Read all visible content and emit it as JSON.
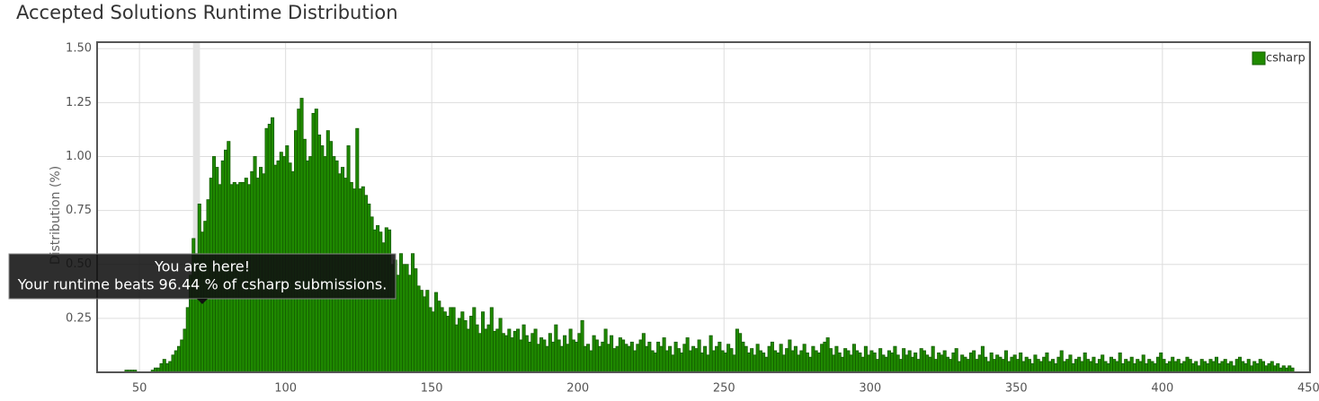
{
  "chart_data": {
    "type": "histogram",
    "title": "Accepted Solutions Runtime Distribution",
    "y_label": "Distribution (%)",
    "bins": [
      45,
      46,
      47,
      48,
      49,
      50,
      51,
      52,
      53,
      54,
      55,
      56,
      57,
      58,
      59,
      60,
      61,
      62,
      63,
      64,
      65,
      66,
      67,
      68,
      69,
      70,
      71,
      72,
      73,
      74,
      75,
      76,
      77,
      78,
      79,
      80,
      81,
      82,
      83,
      84,
      85,
      86,
      87,
      88,
      89,
      90,
      91,
      92,
      93,
      94,
      95,
      96,
      97,
      98,
      99,
      100,
      101,
      102,
      103,
      104,
      105,
      106,
      107,
      108,
      109,
      110,
      111,
      112,
      113,
      114,
      115,
      116,
      117,
      118,
      119,
      120,
      121,
      122,
      123,
      124,
      125,
      126,
      127,
      128,
      129,
      130,
      131,
      132,
      133,
      134,
      135,
      136,
      137,
      138,
      139,
      140,
      141,
      142,
      143,
      144,
      145,
      146,
      147,
      148,
      149,
      150,
      151,
      152,
      153,
      154,
      155,
      156,
      157,
      158,
      159,
      160,
      161,
      162,
      163,
      164,
      165,
      166,
      167,
      168,
      169,
      170,
      171,
      172,
      173,
      174,
      175,
      176,
      177,
      178,
      179,
      180,
      181,
      182,
      183,
      184,
      185,
      186,
      187,
      188,
      189,
      190,
      191,
      192,
      193,
      194,
      195,
      196,
      197,
      198,
      199,
      200,
      201,
      202,
      203,
      204,
      205,
      206,
      207,
      208,
      209,
      210,
      211,
      212,
      213,
      214,
      215,
      216,
      217,
      218,
      219,
      220,
      221,
      222,
      223,
      224,
      225,
      226,
      227,
      228,
      229,
      230,
      231,
      232,
      233,
      234,
      235,
      236,
      237,
      238,
      239,
      240,
      241,
      242,
      243,
      244,
      245,
      246,
      247,
      248,
      249,
      250,
      251,
      252,
      253,
      254,
      255,
      256,
      257,
      258,
      259,
      260,
      261,
      262,
      263,
      264,
      265,
      266,
      267,
      268,
      269,
      270,
      271,
      272,
      273,
      274,
      275,
      276,
      277,
      278,
      279,
      280,
      281,
      282,
      283,
      284,
      285,
      286,
      287,
      288,
      289,
      290,
      291,
      292,
      293,
      294,
      295,
      296,
      297,
      298,
      299,
      300,
      301,
      302,
      303,
      304,
      305,
      306,
      307,
      308,
      309,
      310,
      311,
      312,
      313,
      314,
      315,
      316,
      317,
      318,
      319,
      320,
      321,
      322,
      323,
      324,
      325,
      326,
      327,
      328,
      329,
      330,
      331,
      332,
      333,
      334,
      335,
      336,
      337,
      338,
      339,
      340,
      341,
      342,
      343,
      344,
      345,
      346,
      347,
      348,
      349,
      350,
      351,
      352,
      353,
      354,
      355,
      356,
      357,
      358,
      359,
      360,
      361,
      362,
      363,
      364,
      365,
      366,
      367,
      368,
      369,
      370,
      371,
      372,
      373,
      374,
      375,
      376,
      377,
      378,
      379,
      380,
      381,
      382,
      383,
      384,
      385,
      386,
      387,
      388,
      389,
      390,
      391,
      392,
      393,
      394,
      395,
      396,
      397,
      398,
      399,
      400,
      401,
      402,
      403,
      404,
      405,
      406,
      407,
      408,
      409,
      410,
      411,
      412,
      413,
      414,
      415,
      416,
      417,
      418,
      419,
      420,
      421,
      422,
      423,
      424,
      425,
      426,
      427,
      428,
      429,
      430,
      431,
      432,
      433,
      434,
      435,
      436,
      437,
      438,
      439,
      440,
      441,
      442,
      443,
      444,
      445
    ],
    "series": [
      {
        "name": "csharp",
        "color": "#1f8a00",
        "values": [
          0.01,
          0.01,
          0.01,
          0.01,
          0,
          0,
          0,
          0,
          0,
          0.01,
          0.02,
          0.02,
          0.04,
          0.06,
          0.04,
          0.05,
          0.08,
          0.1,
          0.12,
          0.15,
          0.2,
          0.3,
          0.45,
          0.62,
          0.55,
          0.78,
          0.65,
          0.7,
          0.8,
          0.9,
          1.0,
          0.95,
          0.87,
          0.98,
          1.03,
          1.07,
          0.87,
          0.88,
          0.87,
          0.88,
          0.88,
          0.9,
          0.87,
          0.93,
          1.0,
          0.9,
          0.95,
          0.92,
          1.13,
          1.15,
          1.18,
          0.96,
          0.98,
          1.02,
          1.0,
          1.05,
          0.97,
          0.93,
          1.12,
          1.22,
          1.27,
          1.08,
          0.98,
          1.0,
          1.2,
          1.22,
          1.1,
          1.05,
          1.0,
          1.12,
          1.07,
          1.0,
          0.98,
          0.92,
          0.95,
          0.9,
          1.05,
          0.88,
          0.85,
          1.13,
          0.85,
          0.86,
          0.82,
          0.78,
          0.72,
          0.66,
          0.68,
          0.65,
          0.6,
          0.67,
          0.66,
          0.5,
          0.52,
          0.45,
          0.55,
          0.5,
          0.5,
          0.45,
          0.55,
          0.48,
          0.4,
          0.38,
          0.35,
          0.38,
          0.3,
          0.28,
          0.37,
          0.33,
          0.3,
          0.28,
          0.26,
          0.3,
          0.3,
          0.22,
          0.25,
          0.28,
          0.24,
          0.2,
          0.26,
          0.3,
          0.22,
          0.18,
          0.28,
          0.2,
          0.22,
          0.3,
          0.19,
          0.2,
          0.25,
          0.18,
          0.17,
          0.2,
          0.16,
          0.19,
          0.2,
          0.15,
          0.22,
          0.17,
          0.14,
          0.18,
          0.2,
          0.13,
          0.16,
          0.15,
          0.12,
          0.18,
          0.14,
          0.22,
          0.15,
          0.12,
          0.17,
          0.13,
          0.2,
          0.15,
          0.14,
          0.18,
          0.24,
          0.12,
          0.13,
          0.1,
          0.17,
          0.15,
          0.12,
          0.14,
          0.2,
          0.13,
          0.17,
          0.11,
          0.12,
          0.16,
          0.15,
          0.13,
          0.12,
          0.14,
          0.1,
          0.13,
          0.15,
          0.18,
          0.12,
          0.14,
          0.1,
          0.09,
          0.14,
          0.12,
          0.16,
          0.1,
          0.12,
          0.08,
          0.14,
          0.11,
          0.09,
          0.13,
          0.16,
          0.1,
          0.12,
          0.11,
          0.15,
          0.09,
          0.12,
          0.08,
          0.17,
          0.1,
          0.12,
          0.14,
          0.1,
          0.09,
          0.13,
          0.11,
          0.08,
          0.2,
          0.18,
          0.14,
          0.12,
          0.09,
          0.11,
          0.08,
          0.13,
          0.1,
          0.09,
          0.07,
          0.12,
          0.14,
          0.1,
          0.09,
          0.13,
          0.08,
          0.11,
          0.15,
          0.1,
          0.12,
          0.08,
          0.1,
          0.13,
          0.09,
          0.07,
          0.12,
          0.1,
          0.09,
          0.13,
          0.14,
          0.16,
          0.11,
          0.08,
          0.12,
          0.09,
          0.07,
          0.11,
          0.1,
          0.08,
          0.13,
          0.1,
          0.09,
          0.07,
          0.12,
          0.08,
          0.1,
          0.09,
          0.06,
          0.11,
          0.08,
          0.07,
          0.1,
          0.09,
          0.12,
          0.08,
          0.06,
          0.11,
          0.08,
          0.1,
          0.07,
          0.09,
          0.06,
          0.11,
          0.1,
          0.08,
          0.07,
          0.12,
          0.06,
          0.09,
          0.08,
          0.1,
          0.07,
          0.06,
          0.09,
          0.11,
          0.05,
          0.08,
          0.07,
          0.06,
          0.09,
          0.1,
          0.06,
          0.08,
          0.12,
          0.07,
          0.05,
          0.09,
          0.06,
          0.08,
          0.07,
          0.06,
          0.1,
          0.05,
          0.07,
          0.08,
          0.06,
          0.09,
          0.05,
          0.07,
          0.06,
          0.04,
          0.08,
          0.06,
          0.05,
          0.07,
          0.09,
          0.05,
          0.06,
          0.04,
          0.07,
          0.1,
          0.05,
          0.06,
          0.08,
          0.04,
          0.06,
          0.07,
          0.05,
          0.09,
          0.06,
          0.05,
          0.07,
          0.04,
          0.06,
          0.08,
          0.05,
          0.04,
          0.07,
          0.06,
          0.05,
          0.09,
          0.04,
          0.06,
          0.05,
          0.07,
          0.04,
          0.06,
          0.05,
          0.08,
          0.04,
          0.06,
          0.05,
          0.04,
          0.07,
          0.09,
          0.06,
          0.04,
          0.05,
          0.07,
          0.05,
          0.06,
          0.04,
          0.05,
          0.07,
          0.06,
          0.04,
          0.05,
          0.03,
          0.06,
          0.05,
          0.04,
          0.06,
          0.05,
          0.07,
          0.04,
          0.05,
          0.06,
          0.04,
          0.05,
          0.03,
          0.06,
          0.07,
          0.05,
          0.04,
          0.06,
          0.03,
          0.05,
          0.04,
          0.06,
          0.05,
          0.03,
          0.04,
          0.05,
          0.03,
          0.04,
          0.02,
          0.03,
          0.02,
          0.03,
          0.02
        ]
      }
    ],
    "xlim": [
      35.5,
      450.5
    ],
    "xticks": [
      50,
      100,
      150,
      200,
      250,
      300,
      350,
      400,
      450
    ],
    "ylim": [
      0,
      1.53
    ],
    "yticks": [
      0.25,
      {
        "value": 0.5,
        "label": "0.50"
      },
      0.75,
      {
        "value": 1,
        "label": "1.00"
      },
      1.25,
      {
        "value": 1.5,
        "label": "1.50"
      }
    ],
    "grid": true,
    "legend": "top-right",
    "highlight_x": [
      68,
      71
    ],
    "annotation": [
      "You are here!",
      "Your runtime beats 96.44 % of csharp submissions."
    ]
  }
}
